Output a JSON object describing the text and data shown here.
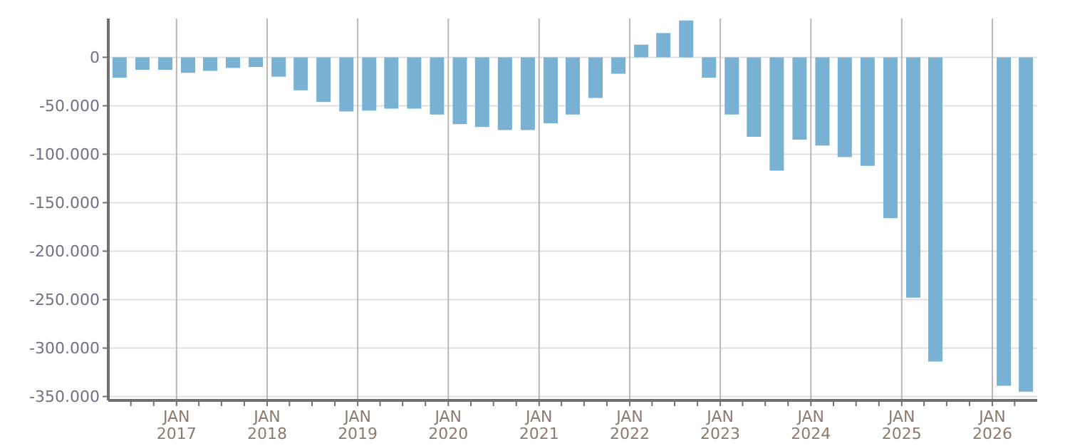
{
  "chart_data": {
    "type": "bar",
    "color": "#78b1d3",
    "x": [
      "2016-05-15",
      "2016-08-15",
      "2016-11-15",
      "2017-02-15",
      "2017-05-15",
      "2017-08-15",
      "2017-11-15",
      "2018-02-15",
      "2018-05-15",
      "2018-08-15",
      "2018-11-15",
      "2019-02-15",
      "2019-05-15",
      "2019-08-15",
      "2019-11-15",
      "2020-02-15",
      "2020-05-15",
      "2020-08-15",
      "2020-11-15",
      "2021-02-15",
      "2021-05-15",
      "2021-08-15",
      "2021-11-15",
      "2022-02-15",
      "2022-05-15",
      "2022-08-15",
      "2022-11-15",
      "2023-02-15",
      "2023-05-15",
      "2023-08-15",
      "2023-11-15",
      "2024-02-15",
      "2024-05-15",
      "2024-08-15",
      "2024-11-15",
      "2025-02-15",
      "2025-05-15",
      "2025-08-15",
      "2025-11-15",
      "2026-02-15",
      "2026-05-15"
    ],
    "values": [
      -21000,
      -13000,
      -13000,
      -16000,
      -14000,
      -11000,
      -10000,
      -20000,
      -34000,
      -46000,
      -56000,
      -55000,
      -53000,
      -53000,
      -59000,
      -69000,
      -72000,
      -75000,
      -75000,
      -68000,
      -59000,
      -42000,
      -17000,
      13000,
      25000,
      38000,
      -21000,
      -59000,
      -82000,
      -117000,
      -85000,
      -91000,
      -103000,
      -112000,
      -166000,
      -248000,
      -314000,
      null,
      null,
      -339000,
      -345000
    ],
    "xlim": [
      "2016-04-01",
      "2026-07-01"
    ],
    "xticks": [
      {
        "value": "2016-07-01",
        "label": null
      },
      {
        "value": "2016-10-01",
        "label": null
      },
      {
        "value": "2017-01-01",
        "label": "JAN 2017"
      },
      {
        "value": "2017-04-01",
        "label": null
      },
      {
        "value": "2017-07-01",
        "label": null
      },
      {
        "value": "2017-10-01",
        "label": null
      },
      {
        "value": "2018-01-01",
        "label": "JAN 2018"
      },
      {
        "value": "2018-04-01",
        "label": null
      },
      {
        "value": "2018-07-01",
        "label": null
      },
      {
        "value": "2018-10-01",
        "label": null
      },
      {
        "value": "2019-01-01",
        "label": "JAN 2019"
      },
      {
        "value": "2019-04-01",
        "label": null
      },
      {
        "value": "2019-07-01",
        "label": null
      },
      {
        "value": "2019-10-01",
        "label": null
      },
      {
        "value": "2020-01-01",
        "label": "JAN 2020"
      },
      {
        "value": "2020-04-01",
        "label": null
      },
      {
        "value": "2020-07-01",
        "label": null
      },
      {
        "value": "2020-10-01",
        "label": null
      },
      {
        "value": "2021-01-01",
        "label": "JAN 2021"
      },
      {
        "value": "2021-04-01",
        "label": null
      },
      {
        "value": "2021-07-01",
        "label": null
      },
      {
        "value": "2021-10-01",
        "label": null
      },
      {
        "value": "2022-01-01",
        "label": "JAN 2022"
      },
      {
        "value": "2022-04-01",
        "label": null
      },
      {
        "value": "2022-07-01",
        "label": null
      },
      {
        "value": "2022-10-01",
        "label": null
      },
      {
        "value": "2023-01-01",
        "label": "JAN 2023"
      },
      {
        "value": "2023-04-01",
        "label": null
      },
      {
        "value": "2023-07-01",
        "label": null
      },
      {
        "value": "2023-10-01",
        "label": null
      },
      {
        "value": "2024-01-01",
        "label": "JAN 2024"
      },
      {
        "value": "2024-04-01",
        "label": null
      },
      {
        "value": "2024-07-01",
        "label": null
      },
      {
        "value": "2024-10-01",
        "label": null
      },
      {
        "value": "2025-01-01",
        "label": "JAN 2025"
      },
      {
        "value": "2025-04-01",
        "label": null
      },
      {
        "value": "2025-07-01",
        "label": null
      },
      {
        "value": "2025-10-01",
        "label": null
      },
      {
        "value": "2026-01-01",
        "label": "JAN 2026"
      },
      {
        "value": "2026-04-01",
        "label": null
      }
    ],
    "ylim": [
      -354000,
      40000
    ],
    "yticks": [
      {
        "value": 0,
        "label": "0"
      },
      {
        "value": -50000,
        "label": "-50.000"
      },
      {
        "value": -100000,
        "label": "-100.000"
      },
      {
        "value": -150000,
        "label": "-150.000"
      },
      {
        "value": -200000,
        "label": "-200.000"
      },
      {
        "value": -250000,
        "label": "-250.000"
      },
      {
        "value": -300000,
        "label": "-300.000"
      },
      {
        "value": -350000,
        "label": "-350.000"
      }
    ],
    "grid": true
  }
}
